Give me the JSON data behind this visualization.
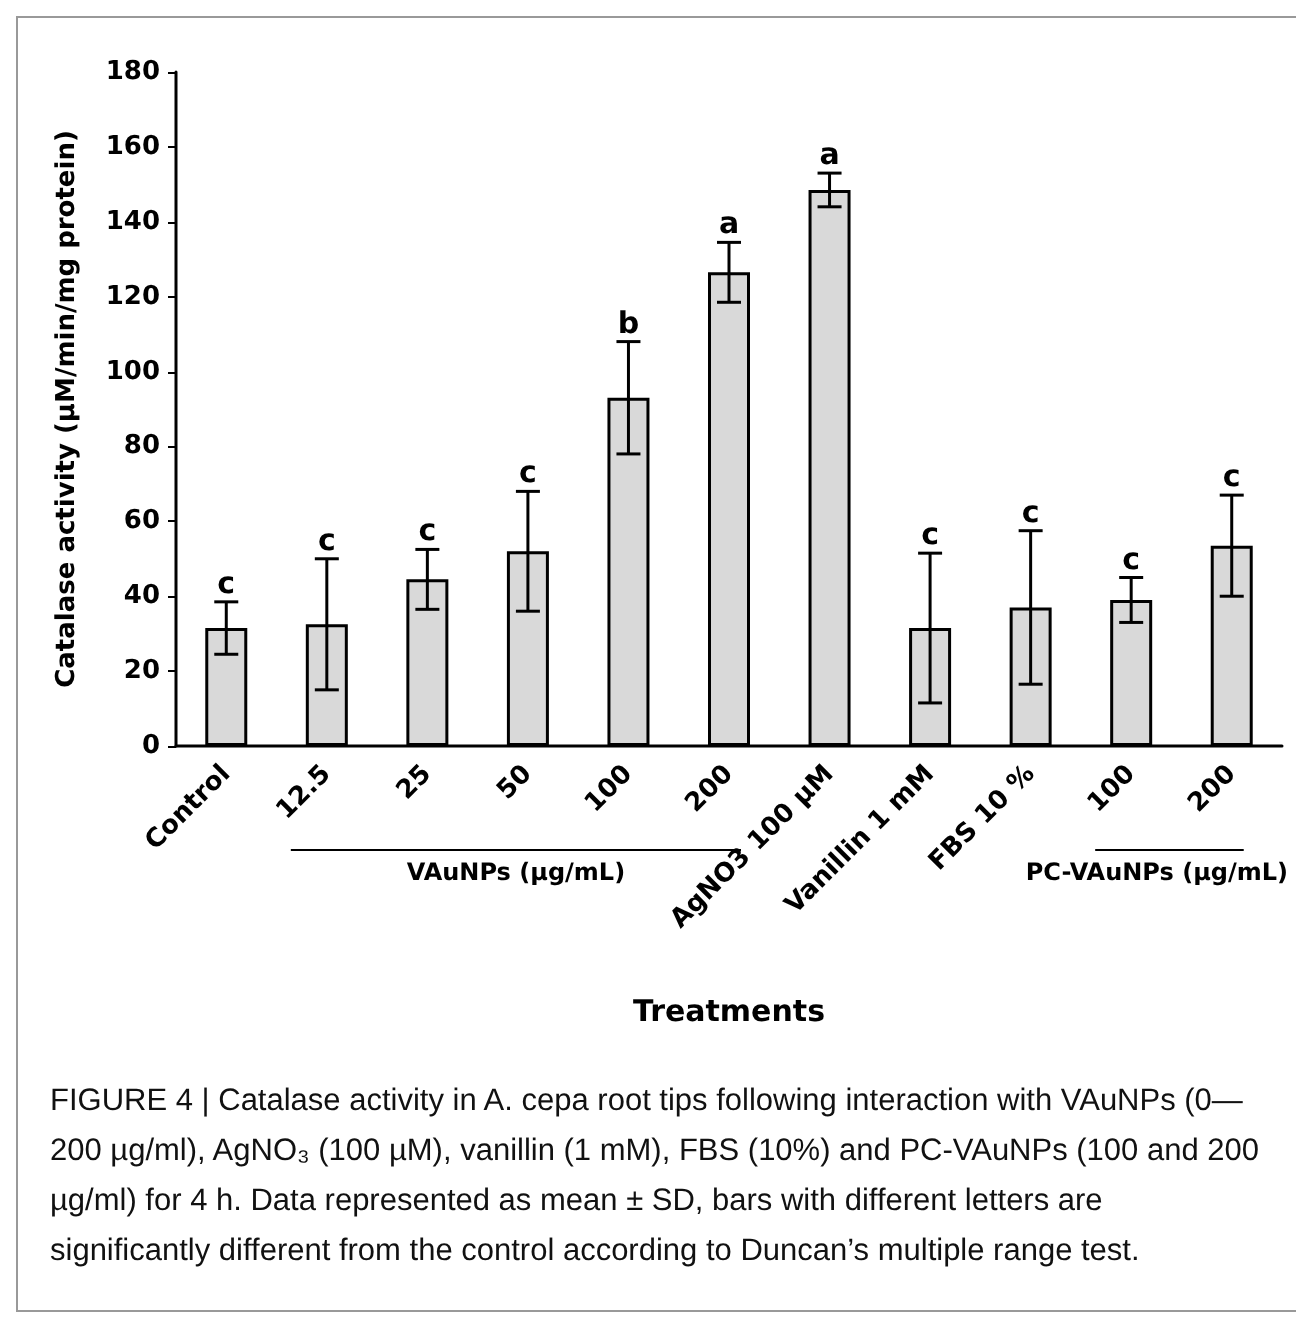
{
  "chart_data": {
    "type": "bar",
    "categories": [
      "Control",
      "12.5",
      "25",
      "50",
      "100",
      "200",
      "AgNO3 100 µM",
      "Vanillin 1 mM",
      "FBS 10 %",
      "100",
      "200"
    ],
    "values": [
      31.5,
      32.5,
      44.5,
      52,
      93,
      126.5,
      148.5,
      31.5,
      37,
      39,
      53.5
    ],
    "errors": [
      7,
      17.5,
      8,
      16,
      15,
      8,
      4.5,
      20,
      20.5,
      6,
      13.5
    ],
    "color": "#d9d9d9",
    "xlabel": "Treatments",
    "ylabel": "Catalase activity (µM/min/mg protein)",
    "ylim": [
      0,
      180
    ],
    "yticks": [
      0,
      20,
      40,
      60,
      80,
      100,
      120,
      140,
      160,
      180
    ],
    "grid": false,
    "annotations": [
      "c",
      "c",
      "c",
      "c",
      "b",
      "a",
      "a",
      "c",
      "c",
      "c",
      "c",
      "VAuNPs (µg/mL)",
      "PC-VAuNPs (µg/mL)",
      "FIGURE 4 | Catalase activity in A. cepa root tips following interaction with VAuNPs (0—200 µg/ml), AgNO₃ (100 µM), vanillin (1 mM), FBS (10%) and PC-VAuNPs (100 and 200 µg/ml) for 4 h. Data represented as mean ± SD, bars with different letters are significantly different from the control according to Duncan’s multiple range test."
    ]
  }
}
